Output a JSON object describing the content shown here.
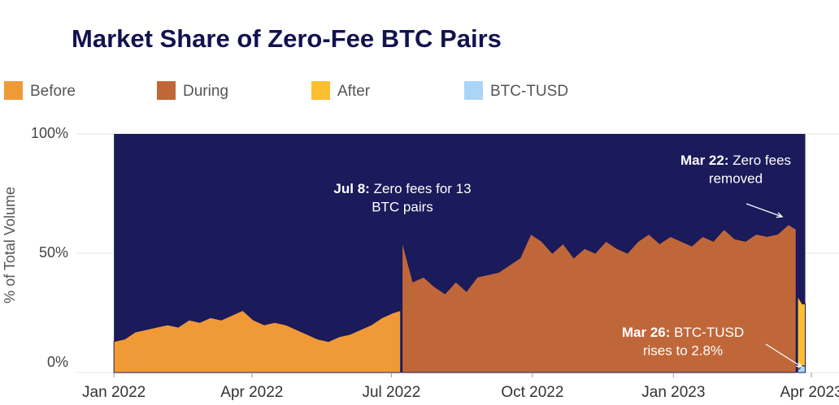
{
  "chart_data": {
    "type": "stacked-area",
    "title": "Market Share of Zero-Fee BTC Pairs",
    "y_label": "% of Total Volume",
    "x": [
      0,
      7,
      14,
      21,
      28,
      35,
      42,
      49,
      56,
      63,
      70,
      77,
      84,
      91,
      98,
      105,
      112,
      119,
      126,
      133,
      140,
      147,
      154,
      161,
      168,
      175,
      182,
      187,
      188,
      195,
      202,
      209,
      216,
      223,
      230,
      237,
      244,
      251,
      258,
      265,
      272,
      279,
      286,
      293,
      300,
      307,
      314,
      321,
      328,
      335,
      342,
      349,
      356,
      363,
      370,
      377,
      384,
      391,
      398,
      405,
      412,
      419,
      426,
      433,
      440,
      445,
      446,
      449,
      451
    ],
    "series": [
      {
        "name": "Before",
        "color": "#f09a37",
        "values": [
          13,
          14,
          17,
          18,
          19,
          20,
          19,
          22,
          21,
          23,
          22,
          24,
          26,
          22,
          20,
          21,
          20,
          18,
          16,
          14,
          13,
          15,
          16,
          18,
          20,
          23,
          25,
          26,
          null,
          null,
          null,
          null,
          null,
          null,
          null,
          null,
          null,
          null,
          null,
          null,
          null,
          null,
          null,
          null,
          null,
          null,
          null,
          null,
          null,
          null,
          null,
          null,
          null,
          null,
          null,
          null,
          null,
          null,
          null,
          null,
          null,
          null,
          null,
          null,
          null,
          null,
          null,
          null,
          null
        ]
      },
      {
        "name": "During",
        "color": "#c0673a",
        "values": [
          null,
          null,
          null,
          null,
          null,
          null,
          null,
          null,
          null,
          null,
          null,
          null,
          null,
          null,
          null,
          null,
          null,
          null,
          null,
          null,
          null,
          null,
          null,
          null,
          null,
          null,
          null,
          null,
          55,
          38,
          40,
          36,
          33,
          38,
          34,
          40,
          41,
          42,
          45,
          48,
          58,
          55,
          50,
          54,
          48,
          52,
          50,
          55,
          52,
          50,
          55,
          58,
          54,
          57,
          55,
          53,
          57,
          55,
          60,
          56,
          55,
          58,
          57,
          58,
          62,
          60,
          null,
          null,
          null
        ]
      },
      {
        "name": "After",
        "color": "#fbbf2f",
        "values": [
          null,
          null,
          null,
          null,
          null,
          null,
          null,
          null,
          null,
          null,
          null,
          null,
          null,
          null,
          null,
          null,
          null,
          null,
          null,
          null,
          null,
          null,
          null,
          null,
          null,
          null,
          null,
          null,
          null,
          null,
          null,
          null,
          null,
          null,
          null,
          null,
          null,
          null,
          null,
          null,
          null,
          null,
          null,
          null,
          null,
          null,
          null,
          null,
          null,
          null,
          null,
          null,
          null,
          null,
          null,
          null,
          null,
          null,
          null,
          null,
          null,
          null,
          null,
          null,
          null,
          null,
          31,
          26,
          26
        ]
      },
      {
        "name": "BTC-TUSD",
        "color": "#a9d5f9",
        "values": [
          null,
          null,
          null,
          null,
          null,
          null,
          null,
          null,
          null,
          null,
          null,
          null,
          null,
          null,
          null,
          null,
          null,
          null,
          null,
          null,
          null,
          null,
          null,
          null,
          null,
          null,
          null,
          null,
          null,
          null,
          null,
          null,
          null,
          null,
          null,
          null,
          null,
          null,
          null,
          null,
          null,
          null,
          null,
          null,
          null,
          null,
          null,
          null,
          null,
          null,
          null,
          null,
          null,
          null,
          null,
          null,
          null,
          null,
          null,
          null,
          null,
          null,
          null,
          null,
          null,
          null,
          1,
          2.8,
          2.8
        ]
      }
    ],
    "xlim": [
      -25,
      473
    ],
    "xticks": [
      {
        "value": 0,
        "label": "Jan 2022"
      },
      {
        "value": 90,
        "label": "Apr 2022"
      },
      {
        "value": 181,
        "label": "Jul 2022"
      },
      {
        "value": 273,
        "label": "Oct 2022"
      },
      {
        "value": 365,
        "label": "Jan 2023"
      },
      {
        "value": 455,
        "label": "Apr 2023"
      }
    ],
    "ylim": [
      0,
      100
    ],
    "yticks": [
      {
        "value": 0,
        "label": "0%"
      },
      {
        "value": 50,
        "label": "50%"
      },
      {
        "value": 100,
        "label": "100%"
      }
    ],
    "grid": true,
    "remainder_color": "#1b1a5a",
    "annotations": [
      {
        "bold": "Jul 8:",
        "lines": [
          "Zero fees for 13",
          "BTC pairs"
        ]
      },
      {
        "bold": "Mar 22:",
        "lines": [
          "Zero fees",
          "removed"
        ]
      },
      {
        "bold": "Mar 26:",
        "lines": [
          "BTC-TUSD",
          "rises to 2.8%"
        ]
      }
    ]
  }
}
